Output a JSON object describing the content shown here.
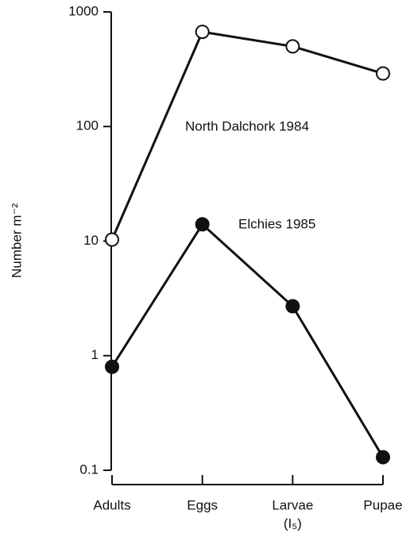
{
  "chart_data": {
    "type": "line",
    "ylabel": "Number m⁻²",
    "categories": [
      "Adults",
      "Eggs",
      "Larvae",
      "Pupae"
    ],
    "annotations": [
      {
        "text": "(I₅)"
      }
    ],
    "series": [
      {
        "name": "North Dalchork 1984",
        "color": "#111111",
        "marker": "open",
        "values": [
          10.3,
          670,
          500,
          290
        ]
      },
      {
        "name": "Elchies 1985",
        "color": "#111111",
        "marker": "filled",
        "values": [
          0.8,
          14,
          2.7,
          0.13
        ]
      }
    ],
    "ylim": [
      0.1,
      1000
    ],
    "yticks": [
      0.1,
      1,
      10,
      100,
      1000
    ],
    "log_y": true
  }
}
